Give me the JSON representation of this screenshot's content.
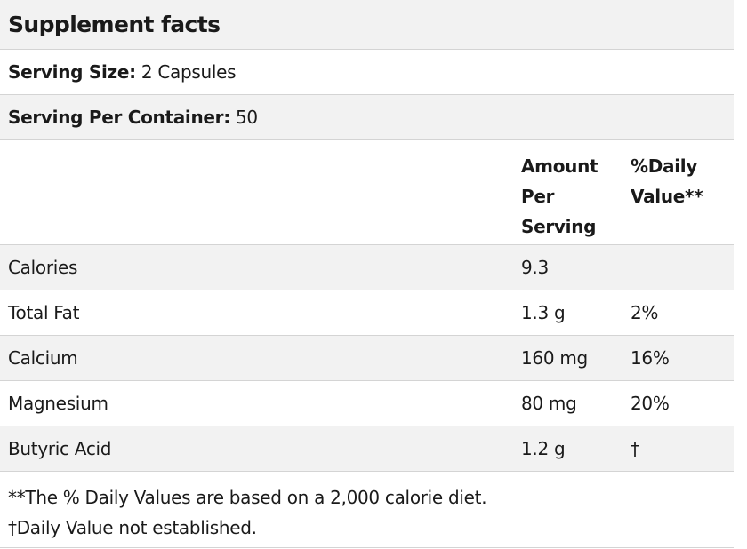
{
  "title": "Supplement facts",
  "serving_size": {
    "label": "Serving Size:",
    "value": "2 Capsules"
  },
  "servings_per_container": {
    "label": "Serving Per Container:",
    "value": "50"
  },
  "columns": {
    "amount_line1": "Amount",
    "amount_line2": "Per",
    "amount_line3": "Serving",
    "dv_line1": "%Daily",
    "dv_line2": "Value**"
  },
  "rows": [
    {
      "name": "Calories",
      "amount": "9.3",
      "dv": ""
    },
    {
      "name": "Total Fat",
      "amount": "1.3 g",
      "dv": "2%"
    },
    {
      "name": "Calcium",
      "amount": "160 mg",
      "dv": "16%"
    },
    {
      "name": "Magnesium",
      "amount": "80 mg",
      "dv": "20%"
    },
    {
      "name": "Butyric Acid",
      "amount": "1.2 g",
      "dv": "†"
    }
  ],
  "footnotes": [
    "**The % Daily Values are based on a 2,000 calorie diet.",
    "†Daily Value not established."
  ]
}
